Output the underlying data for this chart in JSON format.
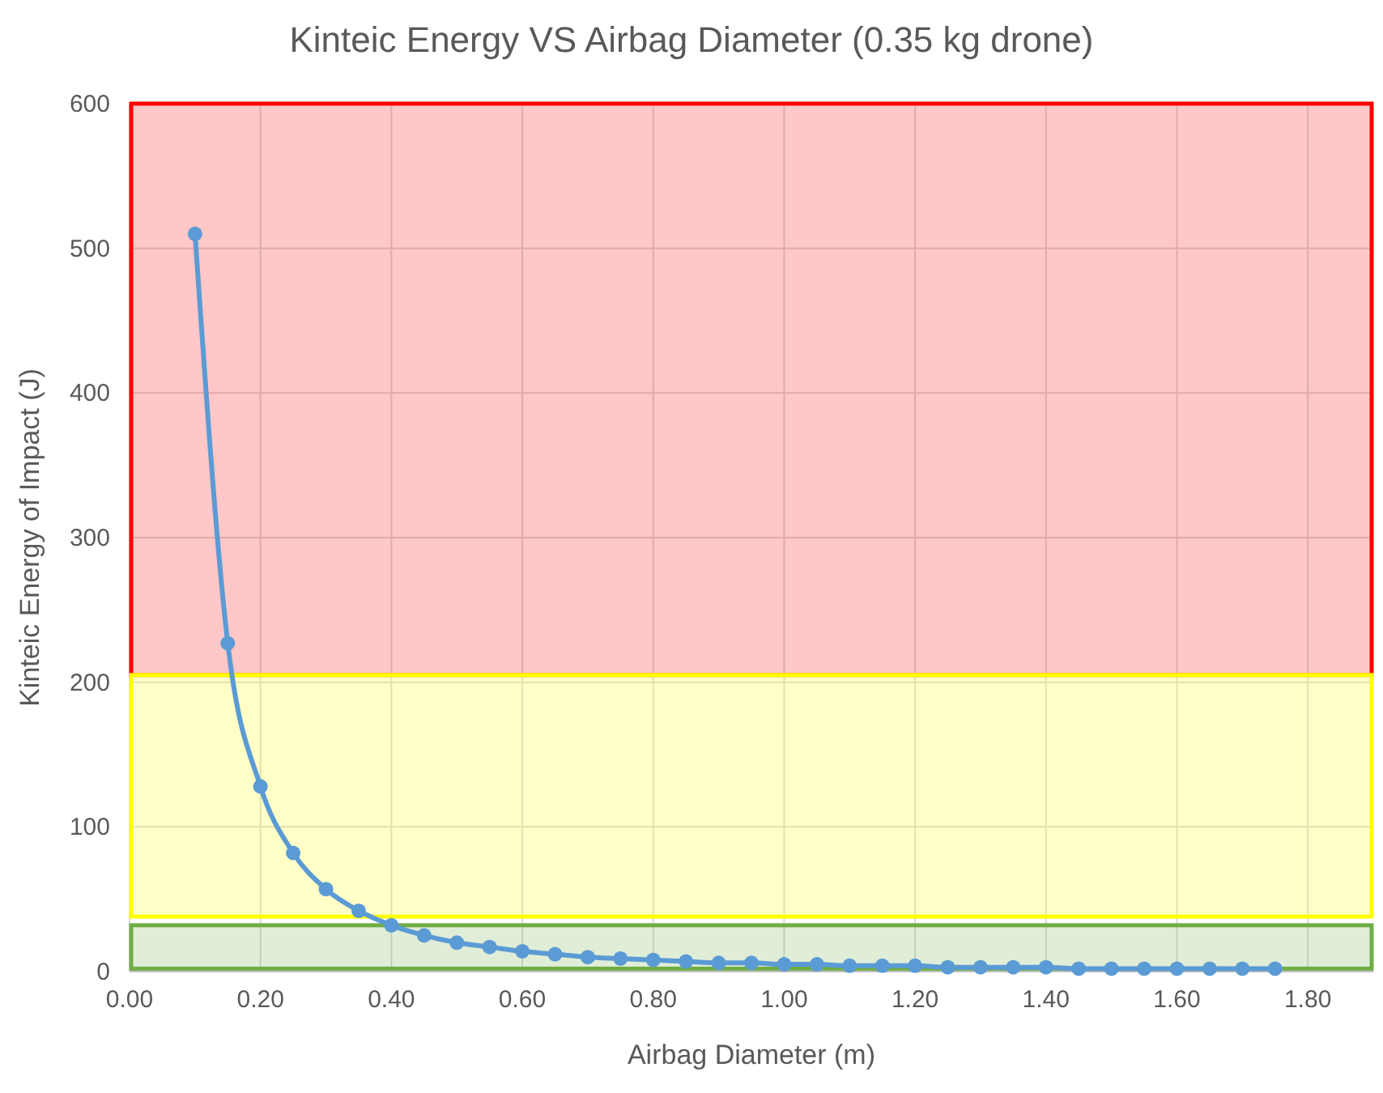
{
  "chart_data": {
    "type": "line",
    "title": "Kinteic Energy VS Airbag Diameter (0.35 kg drone)",
    "xlabel": "Airbag Diameter (m)",
    "ylabel": "Kinteic Energy of Impact (J)",
    "x": [
      0.1,
      0.15,
      0.2,
      0.25,
      0.3,
      0.35,
      0.4,
      0.45,
      0.5,
      0.55,
      0.6,
      0.65,
      0.7,
      0.75,
      0.8,
      0.85,
      0.9,
      0.95,
      1.0,
      1.05,
      1.1,
      1.15,
      1.2,
      1.25,
      1.3,
      1.35,
      1.4,
      1.45,
      1.5,
      1.55,
      1.6,
      1.65,
      1.7,
      1.75
    ],
    "series": [
      {
        "color": "#5b9bd5",
        "values": [
          510,
          227,
          128,
          82,
          57,
          42,
          32,
          25,
          20,
          17,
          14,
          12,
          10,
          9,
          8,
          7,
          6,
          6,
          5,
          5,
          4,
          4,
          4,
          3,
          3,
          3,
          3,
          2,
          2,
          2,
          2,
          2,
          2,
          2
        ]
      }
    ],
    "xlim": [
      0,
      1.9
    ],
    "xticks": [
      {
        "value": 0,
        "label": "0.00"
      },
      {
        "value": 0.2,
        "label": "0.20"
      },
      {
        "value": 0.4,
        "label": "0.40"
      },
      {
        "value": 0.6,
        "label": "0.60"
      },
      {
        "value": 0.8,
        "label": "0.80"
      },
      {
        "value": 1,
        "label": "1.00"
      },
      {
        "value": 1.2,
        "label": "1.20"
      },
      {
        "value": 1.4,
        "label": "1.40"
      },
      {
        "value": 1.6,
        "label": "1.60"
      },
      {
        "value": 1.8,
        "label": "1.80"
      }
    ],
    "ylim": [
      0,
      600
    ],
    "yticks": [
      0,
      100,
      200,
      300,
      400,
      500,
      600
    ],
    "grid": true,
    "marker": "circle",
    "line_style": "solid",
    "bands": [
      {
        "axis": "y",
        "from": 205,
        "to": 600,
        "color": "#ff0000"
      },
      {
        "axis": "y",
        "from": 38,
        "to": 205,
        "color": "#ffff00"
      },
      {
        "axis": "y",
        "from": 2,
        "to": 32,
        "color": "#70ad47"
      }
    ]
  }
}
